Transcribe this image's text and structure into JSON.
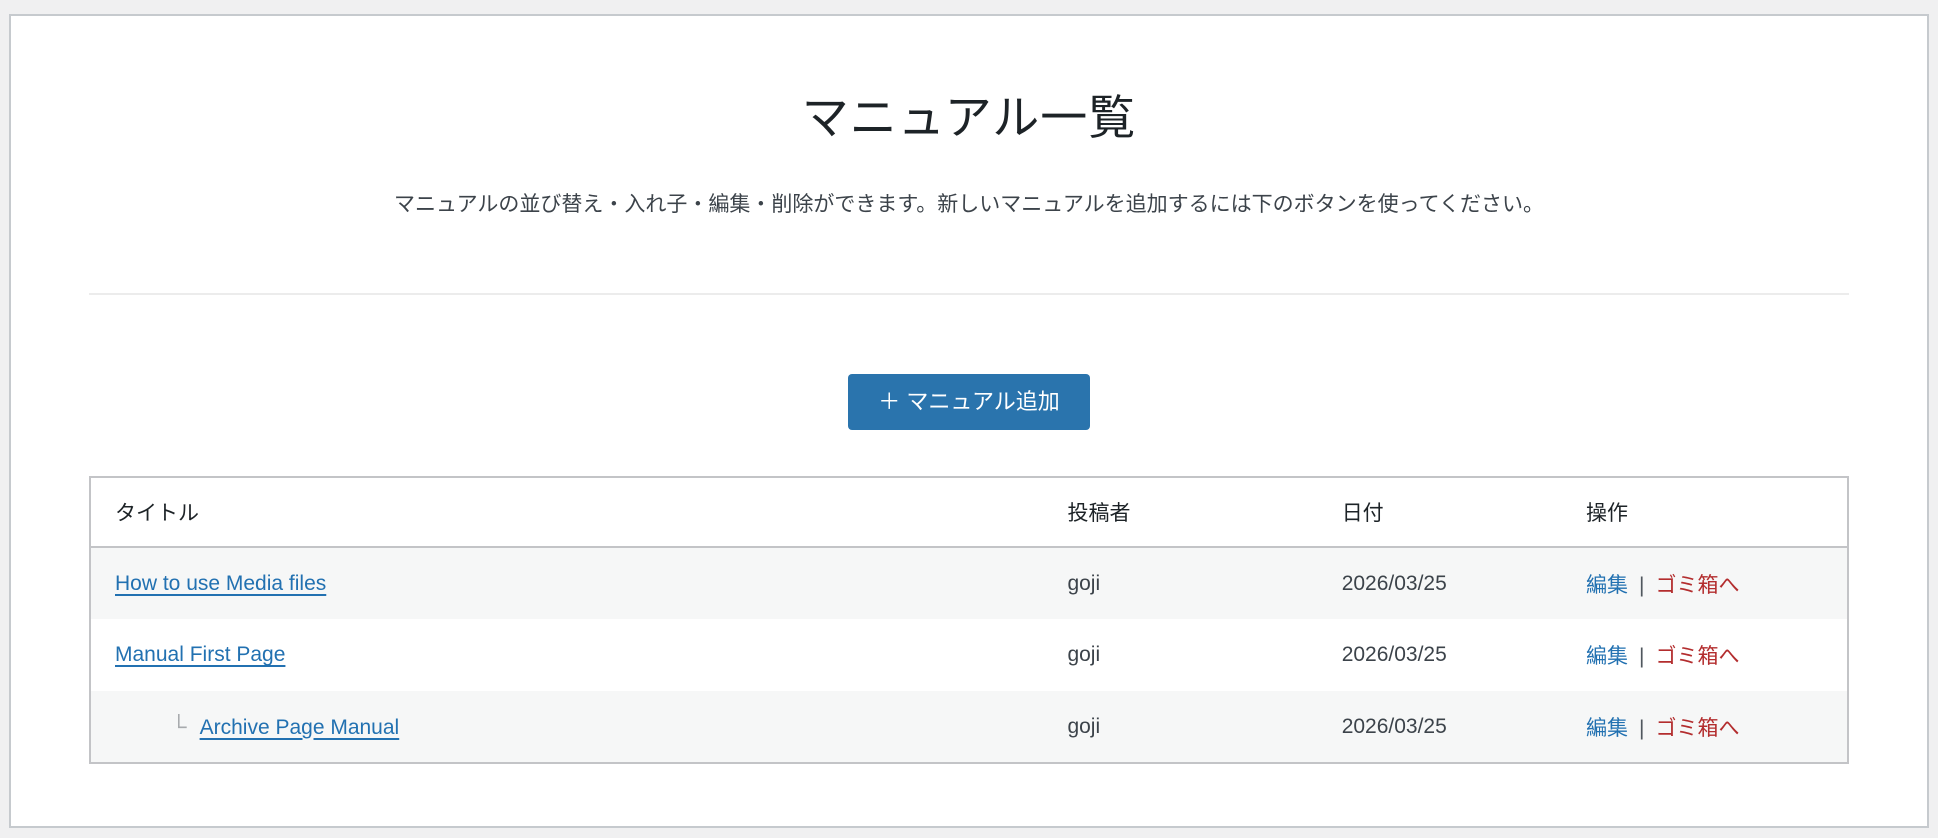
{
  "header": {
    "title": "マニュアル一覧",
    "description": "マニュアルの並び替え・入れ子・編集・削除ができます。新しいマニュアルを追加するには下のボタンを使ってください。"
  },
  "toolbar": {
    "add_manual_label": "＋ マニュアル追加"
  },
  "table": {
    "headers": {
      "title": "タイトル",
      "author": "投稿者",
      "date": "日付",
      "actions": "操作"
    },
    "actions": {
      "edit": "編集",
      "separator": "|",
      "trash": "ゴミ箱へ"
    },
    "child_marker": "└",
    "rows": [
      {
        "title": "How to use Media files",
        "author": "goji",
        "date": "2026/03/25"
      },
      {
        "title": "Manual First Page",
        "author": "goji",
        "date": "2026/03/25"
      },
      {
        "title": "Archive Page Manual",
        "author": "goji",
        "date": "2026/03/25"
      }
    ]
  },
  "colors": {
    "page_bg": "#f0f0f1",
    "panel_bg": "#ffffff",
    "panel_border": "#c6cace",
    "table_border": "#c3c4c7",
    "row_stripe": "#f6f7f7",
    "primary_button_bg": "#2a74ad",
    "link_blue": "#2271b1",
    "trash_red": "#b32d2e",
    "text_dark": "#1d2327",
    "text_body": "#3c434a",
    "child_marker_gray": "#a7aaad"
  }
}
